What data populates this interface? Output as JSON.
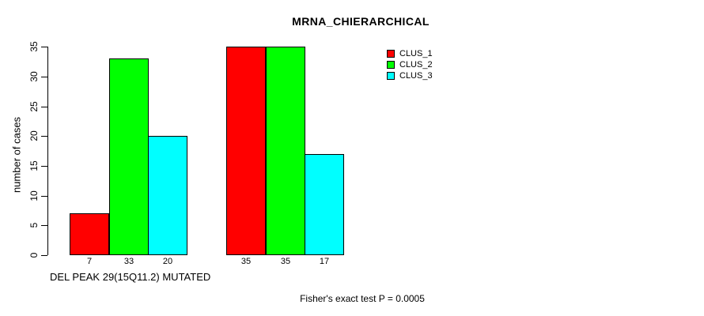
{
  "chart_data": {
    "type": "bar",
    "title": "MRNA_CHIERARCHICAL",
    "ylabel": "number of cases",
    "xlabel": "DEL PEAK 29(15Q11.2) MUTATED",
    "annotation": "Fisher's exact test P = 0.0005",
    "ylim": [
      0,
      35
    ],
    "yticks": [
      0,
      5,
      10,
      15,
      20,
      25,
      30,
      35
    ],
    "grid": false,
    "legend_position": "top-right",
    "n_groups": 2,
    "series": [
      {
        "name": "CLUS_1",
        "color": "#ff0000",
        "values": [
          7,
          35
        ]
      },
      {
        "name": "CLUS_2",
        "color": "#00ff00",
        "values": [
          33,
          35
        ]
      },
      {
        "name": "CLUS_3",
        "color": "#00ffff",
        "values": [
          20,
          17
        ]
      }
    ],
    "bar_value_labels": [
      [
        "7",
        "33",
        "20"
      ],
      [
        "35",
        "35",
        "17"
      ]
    ],
    "colors": {
      "background": "#ffffff",
      "axis": "#000000",
      "text": "#000000"
    }
  }
}
